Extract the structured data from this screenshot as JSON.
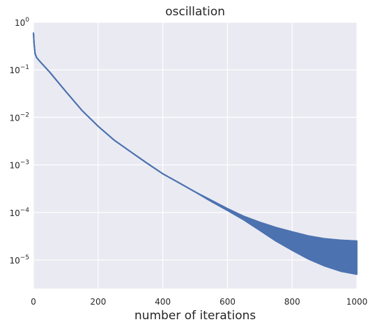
{
  "chart_data": {
    "type": "line",
    "title": "oscillation",
    "xlabel": "number of iterations",
    "ylabel": "",
    "xlim": [
      0,
      1000
    ],
    "ylim": [
      2.5e-06,
      1.0
    ],
    "yscale": "log",
    "grid": true,
    "legend": "none",
    "x_ticks": [
      0,
      200,
      400,
      600,
      800,
      1000
    ],
    "x_tick_labels": [
      "0",
      "200",
      "400",
      "600",
      "800",
      "1000"
    ],
    "y_ticks": [
      {
        "value": 1,
        "base": "10",
        "exp": "0"
      },
      {
        "value": 0.1,
        "base": "10",
        "exp": "−1"
      },
      {
        "value": 0.01,
        "base": "10",
        "exp": "−2"
      },
      {
        "value": 0.001,
        "base": "10",
        "exp": "−3"
      },
      {
        "value": 0.0001,
        "base": "10",
        "exp": "−4"
      },
      {
        "value": 1e-05,
        "base": "10",
        "exp": "−5"
      }
    ],
    "series": [
      {
        "color": "#4c72b0",
        "upper": [
          [
            0,
            0.6
          ],
          [
            2,
            0.35
          ],
          [
            5,
            0.22
          ],
          [
            10,
            0.18
          ],
          [
            20,
            0.15
          ],
          [
            50,
            0.09
          ],
          [
            100,
            0.035
          ],
          [
            150,
            0.014
          ],
          [
            200,
            0.0065
          ],
          [
            250,
            0.0033
          ],
          [
            300,
            0.0019
          ],
          [
            350,
            0.0011
          ],
          [
            400,
            0.00065
          ],
          [
            450,
            0.00042
          ],
          [
            500,
            0.00027
          ],
          [
            550,
            0.00018
          ],
          [
            600,
            0.00012
          ],
          [
            650,
            8.3e-05
          ],
          [
            700,
            6.2e-05
          ],
          [
            750,
            4.8e-05
          ],
          [
            800,
            3.9e-05
          ],
          [
            850,
            3.2e-05
          ],
          [
            900,
            2.8e-05
          ],
          [
            950,
            2.6e-05
          ],
          [
            1000,
            2.5e-05
          ]
        ],
        "lower": [
          [
            0,
            0.6
          ],
          [
            2,
            0.35
          ],
          [
            5,
            0.22
          ],
          [
            10,
            0.18
          ],
          [
            20,
            0.15
          ],
          [
            50,
            0.09
          ],
          [
            100,
            0.035
          ],
          [
            150,
            0.014
          ],
          [
            200,
            0.0065
          ],
          [
            250,
            0.0033
          ],
          [
            300,
            0.0019
          ],
          [
            350,
            0.0011
          ],
          [
            400,
            0.00065
          ],
          [
            450,
            0.00042
          ],
          [
            500,
            0.00027
          ],
          [
            550,
            0.00017
          ],
          [
            600,
            0.00011
          ],
          [
            650,
            7e-05
          ],
          [
            700,
            4.2e-05
          ],
          [
            750,
            2.5e-05
          ],
          [
            800,
            1.6e-05
          ],
          [
            850,
            1.05e-05
          ],
          [
            900,
            7.5e-06
          ],
          [
            950,
            5.8e-06
          ],
          [
            1000,
            5e-06
          ]
        ]
      }
    ]
  }
}
